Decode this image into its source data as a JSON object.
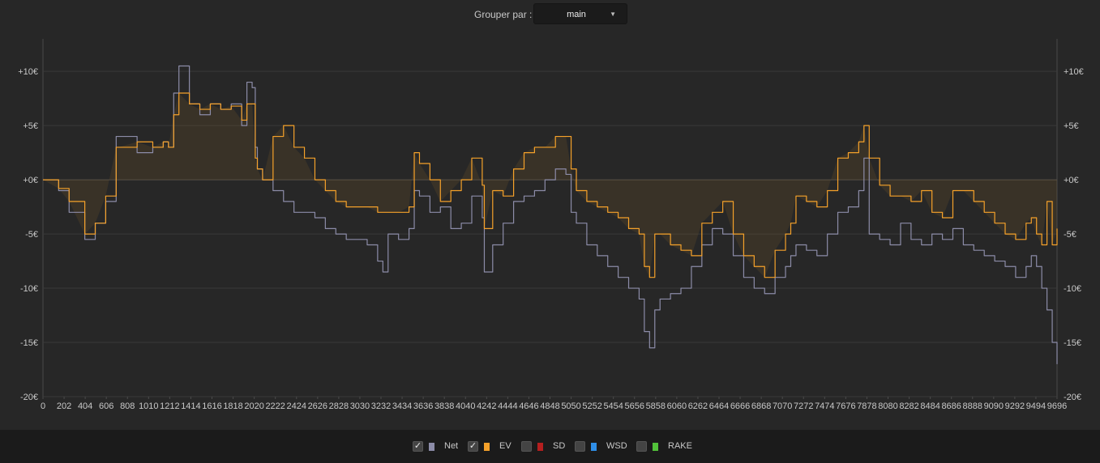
{
  "toolbar": {
    "group_label": "Grouper par :",
    "group_value": "main"
  },
  "legend": [
    {
      "label": "Net",
      "checked": true,
      "check_mark": "✓",
      "color": "#8c8ca8"
    },
    {
      "label": "EV",
      "checked": true,
      "check_mark": "✓",
      "color": "#f5a12a"
    },
    {
      "label": "SD",
      "checked": false,
      "check_mark": "",
      "color": "#b51f1f"
    },
    {
      "label": "WSD",
      "checked": false,
      "check_mark": "",
      "color": "#2f8fe8"
    },
    {
      "label": "RAKE",
      "checked": false,
      "check_mark": "",
      "color": "#52c23a"
    }
  ],
  "chart_data": {
    "type": "line",
    "x_ticks": [
      0,
      202,
      404,
      606,
      808,
      1010,
      1212,
      1414,
      1616,
      1818,
      2020,
      2222,
      2424,
      2626,
      2828,
      3030,
      3232,
      3434,
      3636,
      3838,
      4040,
      4242,
      4444,
      4646,
      4848,
      5050,
      5252,
      5454,
      5656,
      5858,
      6060,
      6262,
      6464,
      6666,
      6868,
      7070,
      7272,
      7474,
      7676,
      7878,
      8080,
      8282,
      8484,
      8686,
      8888,
      9090,
      9292,
      9494,
      9696
    ],
    "y_ticks": [
      {
        "value": 10,
        "label": "+10€"
      },
      {
        "value": 5,
        "label": "+5€"
      },
      {
        "value": 0,
        "label": "+0€"
      },
      {
        "value": -5,
        "label": "-5€"
      },
      {
        "value": -10,
        "label": "-10€"
      },
      {
        "value": -15,
        "label": "-15€"
      },
      {
        "value": -20,
        "label": "-20€"
      }
    ],
    "xlim": [
      0,
      9696
    ],
    "ylim": [
      -20,
      13
    ],
    "grid": true,
    "series": [
      {
        "name": "Net",
        "color": "#8c8ca8",
        "x": [
          0,
          150,
          250,
          400,
          500,
          600,
          700,
          720,
          900,
          1050,
          1150,
          1200,
          1250,
          1300,
          1400,
          1500,
          1600,
          1700,
          1800,
          1900,
          1950,
          2000,
          2030,
          2050,
          2100,
          2200,
          2300,
          2400,
          2500,
          2600,
          2700,
          2800,
          2900,
          3000,
          3100,
          3200,
          3250,
          3300,
          3400,
          3500,
          3550,
          3600,
          3700,
          3800,
          3900,
          4000,
          4100,
          4200,
          4220,
          4300,
          4400,
          4500,
          4600,
          4700,
          4800,
          4900,
          5000,
          5050,
          5100,
          5200,
          5300,
          5400,
          5500,
          5600,
          5700,
          5750,
          5800,
          5850,
          5900,
          6000,
          6100,
          6200,
          6300,
          6400,
          6500,
          6600,
          6700,
          6800,
          6900,
          7000,
          7100,
          7150,
          7200,
          7300,
          7400,
          7500,
          7600,
          7700,
          7800,
          7850,
          7900,
          8000,
          8100,
          8200,
          8300,
          8400,
          8500,
          8600,
          8700,
          8800,
          8900,
          9000,
          9100,
          9200,
          9300,
          9400,
          9450,
          9500,
          9550,
          9600,
          9650,
          9696
        ],
        "y": [
          0,
          -1,
          -3,
          -5.5,
          -4,
          -2,
          4,
          4,
          2.5,
          3,
          3.5,
          3,
          8,
          10.5,
          7,
          6,
          7,
          6.5,
          7,
          5,
          9,
          8.5,
          3,
          1,
          0,
          -1,
          -2,
          -3,
          -3,
          -3.5,
          -4.5,
          -5,
          -5.5,
          -5.5,
          -6,
          -7.5,
          -8.5,
          -5,
          -5.5,
          -4.5,
          -1,
          -1.5,
          -3,
          -2.5,
          -4.5,
          -4,
          -1.5,
          -3.5,
          -8.5,
          -6,
          -4,
          -2,
          -1.5,
          -1,
          0,
          1,
          0.5,
          -3,
          -4,
          -6,
          -7,
          -8,
          -9,
          -10,
          -11,
          -14,
          -15.5,
          -12,
          -11,
          -10.5,
          -10,
          -8,
          -6,
          -4.5,
          -5,
          -7,
          -9,
          -10,
          -10.5,
          -9,
          -8,
          -7,
          -6,
          -6.5,
          -7,
          -5,
          -3,
          -2.5,
          -1,
          2,
          -5,
          -5.5,
          -6,
          -4,
          -5.5,
          -6,
          -5,
          -5.5,
          -4.5,
          -6,
          -6.5,
          -7,
          -7.5,
          -8,
          -9,
          -8,
          -7,
          -8,
          -10,
          -12,
          -15,
          -17
        ]
      },
      {
        "name": "EV",
        "color": "#f5a12a",
        "x": [
          0,
          150,
          250,
          400,
          500,
          600,
          700,
          720,
          900,
          1050,
          1150,
          1200,
          1250,
          1300,
          1400,
          1500,
          1600,
          1700,
          1800,
          1900,
          1950,
          2000,
          2030,
          2050,
          2100,
          2200,
          2300,
          2400,
          2500,
          2600,
          2700,
          2800,
          2900,
          3000,
          3100,
          3200,
          3250,
          3300,
          3400,
          3500,
          3550,
          3600,
          3700,
          3800,
          3900,
          4000,
          4100,
          4200,
          4220,
          4300,
          4400,
          4500,
          4600,
          4700,
          4800,
          4900,
          5000,
          5050,
          5100,
          5200,
          5300,
          5400,
          5500,
          5600,
          5700,
          5750,
          5800,
          5850,
          5900,
          6000,
          6100,
          6200,
          6300,
          6400,
          6500,
          6600,
          6700,
          6800,
          6900,
          7000,
          7100,
          7150,
          7200,
          7300,
          7400,
          7500,
          7600,
          7700,
          7800,
          7850,
          7900,
          8000,
          8100,
          8200,
          8300,
          8400,
          8500,
          8600,
          8700,
          8800,
          8900,
          9000,
          9100,
          9200,
          9300,
          9400,
          9450,
          9500,
          9550,
          9600,
          9650,
          9696
        ],
        "y": [
          0,
          -0.8,
          -2,
          -5,
          -4,
          -1.5,
          3,
          3,
          3.5,
          3,
          3.5,
          3,
          6,
          8,
          7,
          6.5,
          7,
          6.5,
          6.8,
          5.5,
          7,
          7,
          2,
          1,
          0,
          4,
          5,
          3,
          2,
          0,
          -1,
          -2,
          -2.5,
          -2.5,
          -2.5,
          -3,
          -3,
          -3,
          -3,
          -2.5,
          2.5,
          1.5,
          0,
          -2,
          -1,
          0,
          2,
          -0.5,
          -4.5,
          -1,
          -1.5,
          1,
          2.5,
          3,
          3,
          4,
          4,
          1,
          -1,
          -2,
          -2.5,
          -3,
          -3.5,
          -4.5,
          -5,
          -8,
          -9,
          -5,
          -5,
          -6,
          -6.5,
          -7,
          -4,
          -3,
          -2,
          -5,
          -7,
          -8,
          -9,
          -6.5,
          -5,
          -4,
          -1.5,
          -2,
          -2.5,
          -1,
          2,
          2.5,
          3.5,
          5,
          2,
          -0.5,
          -1.5,
          -1.5,
          -2,
          -1,
          -3,
          -3.5,
          -1,
          -1,
          -2,
          -3,
          -4,
          -5,
          -5.5,
          -4,
          -3.5,
          -5,
          -6,
          -2,
          -6,
          -4.5
        ]
      }
    ]
  }
}
